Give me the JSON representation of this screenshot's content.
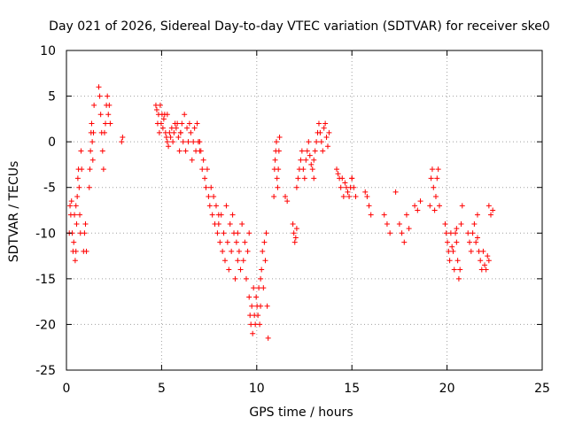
{
  "chart_data": {
    "type": "scatter",
    "title": "Day 021 of 2026, Sidereal Day-to-day VTEC variation (SDTVAR) for receiver ske0",
    "xlabel": "GPS time / hours",
    "ylabel": "SDTVAR / TECUs",
    "xlim": [
      0,
      25
    ],
    "ylim": [
      -25,
      10
    ],
    "xticks": [
      0,
      5,
      10,
      15,
      20,
      25
    ],
    "yticks": [
      -25,
      -20,
      -15,
      -10,
      -5,
      0,
      5,
      10
    ],
    "grid": true,
    "marker": "plus",
    "color": "#ff0000",
    "segments": [
      {
        "x0": 0.15,
        "x1": 0.5,
        "y": [
          -10,
          -7,
          -8,
          -6.5,
          -10,
          -12,
          -11,
          -8,
          -13,
          -7
        ]
      },
      {
        "x0": 0.5,
        "x1": 0.8,
        "y": [
          -12,
          -9,
          -6,
          -4,
          -3,
          -5,
          -8,
          -10,
          -1,
          -3
        ]
      },
      {
        "x0": 0.9,
        "x1": 1.05,
        "y": [
          -12,
          -10,
          -9,
          -12
        ]
      },
      {
        "x0": 1.2,
        "x1": 1.45,
        "y": [
          -5,
          -3,
          -1,
          1,
          2,
          0,
          -2,
          1,
          4
        ]
      },
      {
        "x0": 1.7,
        "x1": 2.3,
        "y": [
          6,
          5,
          3,
          1,
          -1,
          -3,
          1,
          2,
          4,
          5,
          3,
          4,
          2
        ]
      },
      {
        "x0": 2.9,
        "x1": 2.95,
        "y": [
          0,
          0.5
        ]
      },
      {
        "x0": 4.7,
        "x1": 5.3,
        "y": [
          4,
          3.5,
          2,
          3,
          1,
          4,
          2,
          3,
          1.5,
          2.5,
          3,
          1,
          0.5,
          3
        ]
      },
      {
        "x0": 5.3,
        "x1": 6.0,
        "y": [
          0,
          -0.5,
          1,
          0.5,
          1.5,
          0,
          1,
          2,
          1.5,
          2,
          0.5,
          -1,
          1
        ]
      },
      {
        "x0": 6.0,
        "x1": 7.0,
        "y": [
          1,
          2,
          0,
          3,
          -1,
          1.5,
          0,
          2,
          1,
          -2,
          0,
          1.5,
          -1,
          2,
          0,
          -1
        ]
      },
      {
        "x0": 7.0,
        "x1": 8.0,
        "y": [
          0,
          -1,
          -3,
          -2,
          -4,
          -5,
          -3,
          -6,
          -7,
          -5,
          -8,
          -6,
          -9,
          -7,
          -10,
          -8
        ]
      },
      {
        "x0": 8.0,
        "x1": 9.0,
        "y": [
          -9,
          -11,
          -8,
          -12,
          -10,
          -13,
          -7,
          -11,
          -14,
          -9,
          -12,
          -8,
          -10,
          -15,
          -11,
          -13
        ]
      },
      {
        "x0": 9.0,
        "x1": 9.6,
        "y": [
          -10,
          -12,
          -14,
          -9,
          -13,
          -11,
          -15,
          -12,
          -10
        ]
      },
      {
        "x0": 9.6,
        "x1": 10.2,
        "y": [
          -17,
          -19,
          -20,
          -18,
          -21,
          -16,
          -19,
          -20,
          -17,
          -18,
          -19,
          -16,
          -20,
          -18
        ]
      },
      {
        "x0": 10.2,
        "x1": 10.6,
        "y": [
          -15,
          -14,
          -12,
          -16,
          -11,
          -13,
          -10,
          -18,
          -21.5
        ]
      },
      {
        "x0": 10.9,
        "x1": 11.2,
        "y": [
          -6,
          -3,
          -2,
          -1,
          0,
          -4,
          -5,
          -3,
          -1,
          0.5
        ]
      },
      {
        "x0": 11.5,
        "x1": 11.6,
        "y": [
          -6,
          -6.5
        ]
      },
      {
        "x0": 11.9,
        "x1": 12.1,
        "y": [
          -9,
          -10,
          -11,
          -10.5,
          -9.5
        ]
      },
      {
        "x0": 12.1,
        "x1": 13.0,
        "y": [
          -5,
          -4,
          -3,
          -2,
          -1,
          -3,
          -4,
          -2,
          -1,
          0,
          -1.5,
          -2.5,
          -3,
          -4
        ]
      },
      {
        "x0": 13.0,
        "x1": 13.8,
        "y": [
          -2,
          -1,
          0,
          1,
          2,
          1,
          0,
          -1,
          1.5,
          2,
          0.5,
          -0.5,
          1
        ]
      },
      {
        "x0": 14.2,
        "x1": 15.0,
        "y": [
          -3,
          -3.5,
          -4,
          -5,
          -4,
          -6,
          -4.5,
          -5,
          -5.5,
          -6,
          -5,
          -4
        ]
      },
      {
        "x0": 15.0,
        "x1": 15.2,
        "y": [
          -4,
          -5,
          -6
        ]
      },
      {
        "x0": 15.7,
        "x1": 16.0,
        "y": [
          -5.5,
          -6,
          -7,
          -8
        ]
      },
      {
        "x0": 16.7,
        "x1": 17.0,
        "y": [
          -8,
          -9,
          -10
        ]
      },
      {
        "x0": 17.3,
        "x1": 17.4,
        "y": [
          -5.5
        ]
      },
      {
        "x0": 17.5,
        "x1": 18.0,
        "y": [
          -9,
          -10,
          -11,
          -8,
          -9.5
        ]
      },
      {
        "x0": 18.3,
        "x1": 18.6,
        "y": [
          -7,
          -7.5,
          -6.5
        ]
      },
      {
        "x0": 19.1,
        "x1": 19.6,
        "y": [
          -7,
          -4,
          -3,
          -5,
          -7.5,
          -6,
          -4,
          -3,
          -7
        ]
      },
      {
        "x0": 19.9,
        "x1": 20.5,
        "y": [
          -9,
          -10,
          -11,
          -12,
          -13,
          -10,
          -11.5,
          -12,
          -14,
          -10,
          -9.5
        ]
      },
      {
        "x0": 20.5,
        "x1": 20.8,
        "y": [
          -11,
          -13,
          -15,
          -14,
          -9,
          -7
        ]
      },
      {
        "x0": 21.1,
        "x1": 21.6,
        "y": [
          -10,
          -11,
          -12,
          -10,
          -9,
          -11,
          -10.5
        ]
      },
      {
        "x0": 21.6,
        "x1": 22.2,
        "y": [
          -8,
          -12,
          -13,
          -14,
          -12,
          -13.5,
          -14,
          -12.5,
          -13
        ]
      },
      {
        "x0": 22.2,
        "x1": 22.4,
        "y": [
          -7,
          -8,
          -7.5
        ]
      }
    ]
  }
}
